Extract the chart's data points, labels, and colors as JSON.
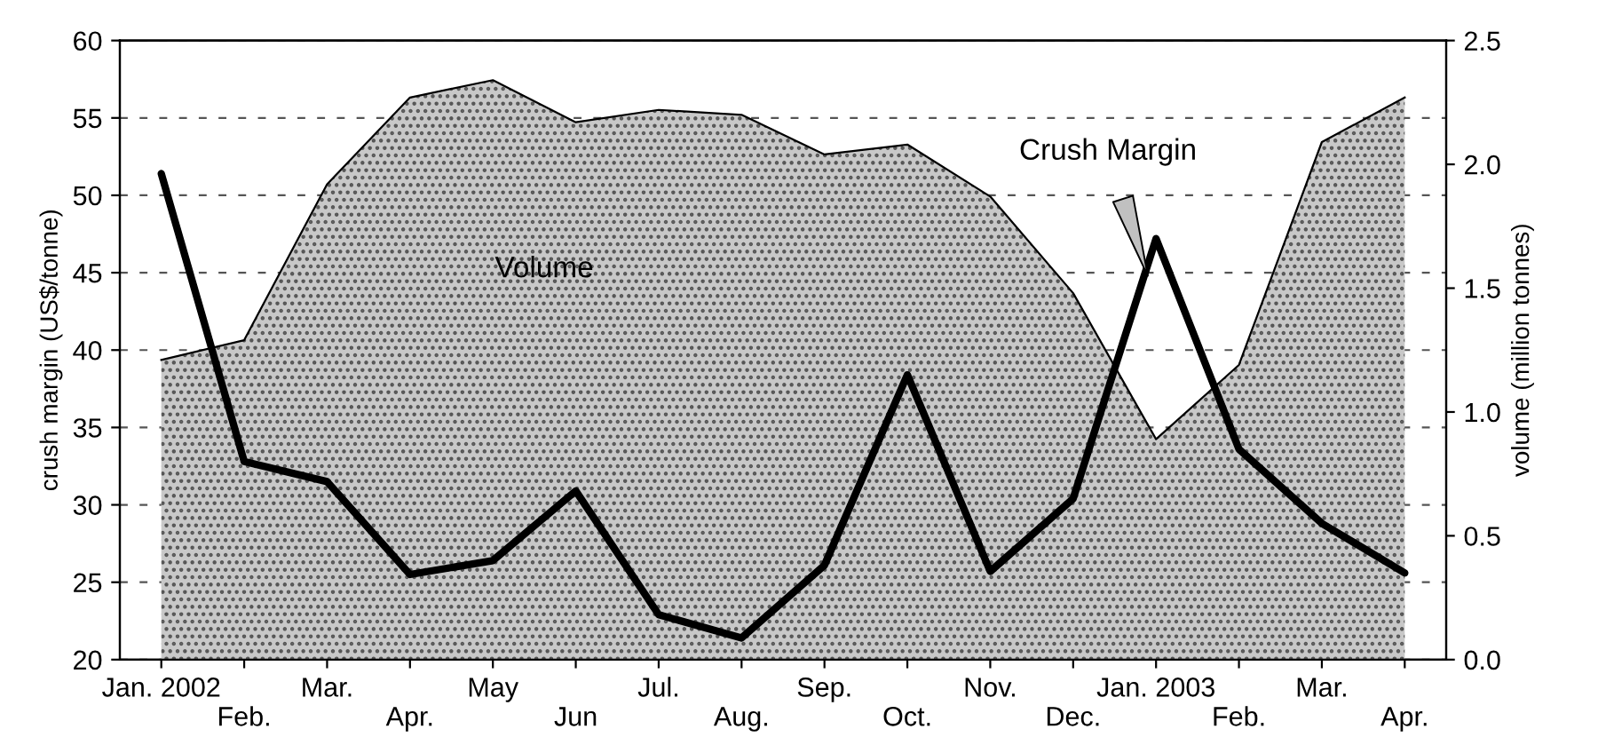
{
  "chart_data": {
    "type": "line",
    "ylabel": "crush margin (US$/tonne)",
    "y2label": "volume (million tonnes)",
    "categories": [
      "Jan. 2002",
      "Feb.",
      "Mar.",
      "Apr.",
      "May",
      "Jun",
      "Jul.",
      "Aug.",
      "Sep.",
      "Oct.",
      "Nov.",
      "Dec.",
      "Jan. 2003",
      "Feb.",
      "Mar.",
      "Apr."
    ],
    "series": [
      {
        "name": "Volume",
        "type": "area",
        "axis": "y2",
        "color": "#c8c8c8",
        "values": [
          1.21,
          1.29,
          1.92,
          2.27,
          2.34,
          2.17,
          2.22,
          2.2,
          2.04,
          2.08,
          1.87,
          1.48,
          0.89,
          1.19,
          2.09,
          2.27
        ]
      },
      {
        "name": "Crush Margin",
        "color": "#000000",
        "values": [
          51.4,
          32.8,
          31.5,
          25.5,
          26.4,
          30.9,
          22.9,
          21.4,
          26.1,
          38.4,
          25.7,
          30.4,
          47.2,
          33.6,
          28.8,
          25.6
        ]
      }
    ],
    "ylim": [
      20,
      60
    ],
    "yticks": [
      20,
      25,
      30,
      35,
      40,
      45,
      50,
      55,
      60
    ],
    "y2lim": [
      0,
      2.5
    ],
    "y2ticks": [
      {
        "value": 0,
        "label": "0.0"
      },
      {
        "value": 0.5,
        "label": "0.5"
      },
      {
        "value": 1,
        "label": "1.0"
      },
      {
        "value": 1.5,
        "label": "1.5"
      },
      {
        "value": 2,
        "label": "2.0"
      },
      {
        "value": 2.5,
        "label": "2.5"
      }
    ],
    "grid": "y",
    "legend": false,
    "line_style": "solid",
    "marker": "none"
  }
}
